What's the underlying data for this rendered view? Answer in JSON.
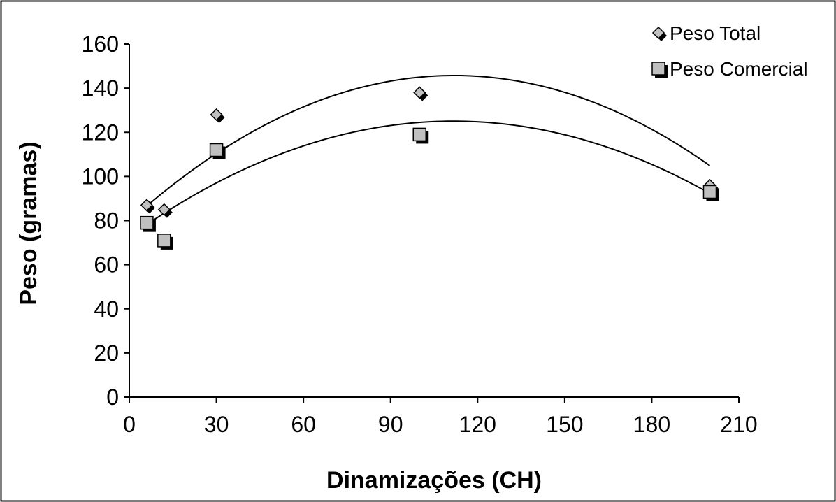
{
  "chart_data": {
    "type": "scatter",
    "title": "",
    "xlabel": "Dinamizações (CH)",
    "ylabel": "Peso (gramas)",
    "xlim": [
      0,
      210
    ],
    "ylim": [
      0,
      160
    ],
    "xticks": [
      0,
      30,
      60,
      90,
      120,
      150,
      180,
      210
    ],
    "yticks": [
      0,
      20,
      40,
      60,
      80,
      100,
      120,
      140,
      160
    ],
    "grid": false,
    "legend_position": "top-right",
    "series": [
      {
        "name": "Peso Total",
        "marker": "diamond",
        "points": [
          {
            "x": 6,
            "y": 87
          },
          {
            "x": 12,
            "y": 85
          },
          {
            "x": 30,
            "y": 128
          },
          {
            "x": 100,
            "y": 138
          },
          {
            "x": 200,
            "y": 96
          }
        ],
        "trend": {
          "type": "polynomial-2",
          "x_range": [
            6,
            200
          ],
          "coefficients": [
            79.7,
            1.18,
            -0.00527
          ]
        }
      },
      {
        "name": "Peso Comercial",
        "marker": "square",
        "points": [
          {
            "x": 6,
            "y": 79
          },
          {
            "x": 12,
            "y": 71
          },
          {
            "x": 30,
            "y": 112
          },
          {
            "x": 100,
            "y": 119
          },
          {
            "x": 200,
            "y": 93
          }
        ],
        "trend": {
          "type": "polynomial-2",
          "x_range": [
            6,
            200
          ],
          "coefficients": [
            72.7,
            0.938,
            -0.0042
          ]
        }
      }
    ]
  }
}
